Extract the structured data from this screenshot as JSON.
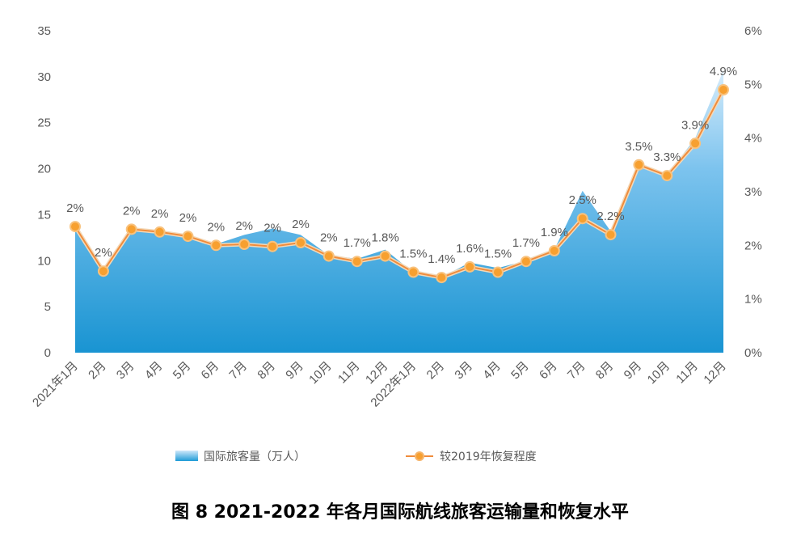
{
  "chart_data": {
    "type": "area",
    "caption": "图 8 2021-2022 年各月国际航线旅客运输量和恢复水平",
    "categories": [
      "2021年1月",
      "2月",
      "3月",
      "4月",
      "5月",
      "6月",
      "7月",
      "8月",
      "9月",
      "10月",
      "11月",
      "12月",
      "2022年1月",
      "2月",
      "3月",
      "4月",
      "5月",
      "6月",
      "7月",
      "8月",
      "9月",
      "10月",
      "11月",
      "12月"
    ],
    "y_left": {
      "min": 0,
      "max": 35,
      "ticks": [
        "0",
        "5",
        "10",
        "15",
        "20",
        "25",
        "30",
        "35"
      ]
    },
    "y_right": {
      "min": 0,
      "max": 6,
      "ticks": [
        "0%",
        "1%",
        "2%",
        "3%",
        "4%",
        "5%",
        "6%"
      ]
    },
    "series": [
      {
        "name": "国际旅客量（万人）",
        "type": "area",
        "axis": "left",
        "color": "#1f9bd7",
        "values": [
          14.0,
          8.7,
          13.6,
          13.2,
          12.8,
          11.8,
          12.8,
          13.5,
          12.8,
          10.6,
          10.2,
          11.2,
          8.7,
          8.2,
          9.8,
          9.2,
          10.0,
          11.2,
          17.6,
          13.2,
          20.6,
          19.3,
          23.3,
          30.7
        ]
      },
      {
        "name": "较2019年恢复程度",
        "type": "line",
        "axis": "right",
        "color": "#f08c3c",
        "values": [
          2.35,
          1.52,
          2.3,
          2.25,
          2.17,
          2.0,
          2.02,
          1.98,
          2.05,
          1.8,
          1.7,
          1.8,
          1.5,
          1.4,
          1.6,
          1.5,
          1.7,
          1.9,
          2.5,
          2.2,
          3.5,
          3.3,
          3.9,
          4.9
        ],
        "labels": [
          "2%",
          "2%",
          "2%",
          "2%",
          "2%",
          "2%",
          "2%",
          "2%",
          "2%",
          "2%",
          "1.7%",
          "1.8%",
          "1.5%",
          "1.4%",
          "1.6%",
          "1.5%",
          "1.7%",
          "1.9%",
          "2.5%",
          "2.2%",
          "3.5%",
          "3.3%",
          "3.9%",
          "4.9%"
        ]
      }
    ],
    "legend_position": "bottom",
    "grid": false
  }
}
